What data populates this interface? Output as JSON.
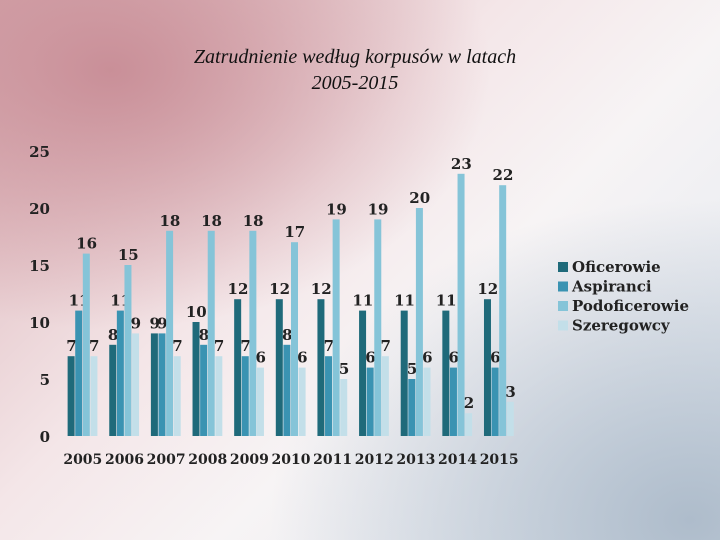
{
  "title_line1": "Zatrudnienie według korpusów w latach",
  "title_line2": "2005-2015",
  "chart_data": {
    "type": "bar",
    "categories": [
      "2005",
      "2006",
      "2007",
      "2008",
      "2009",
      "2010",
      "2011",
      "2012",
      "2013",
      "2014",
      "2015"
    ],
    "series": [
      {
        "name": "Oficerowie",
        "color": "#1f6a7a",
        "values": [
          7,
          8,
          9,
          10,
          12,
          12,
          12,
          11,
          11,
          11,
          12
        ]
      },
      {
        "name": "Aspiranci",
        "color": "#3a93b2",
        "values": [
          11,
          11,
          9,
          8,
          7,
          8,
          7,
          6,
          5,
          6,
          6
        ]
      },
      {
        "name": "Podoficerowie",
        "color": "#85c4d8",
        "values": [
          16,
          15,
          18,
          18,
          18,
          17,
          19,
          19,
          20,
          23,
          22
        ]
      },
      {
        "name": "Szeregowcy",
        "color": "#c3dfe9",
        "values": [
          7,
          9,
          7,
          7,
          6,
          6,
          5,
          7,
          6,
          2,
          3
        ]
      }
    ],
    "ylim": [
      0,
      25
    ],
    "yticks": [
      0,
      5,
      10,
      15,
      20,
      25
    ],
    "grid": false,
    "legend": "right"
  }
}
